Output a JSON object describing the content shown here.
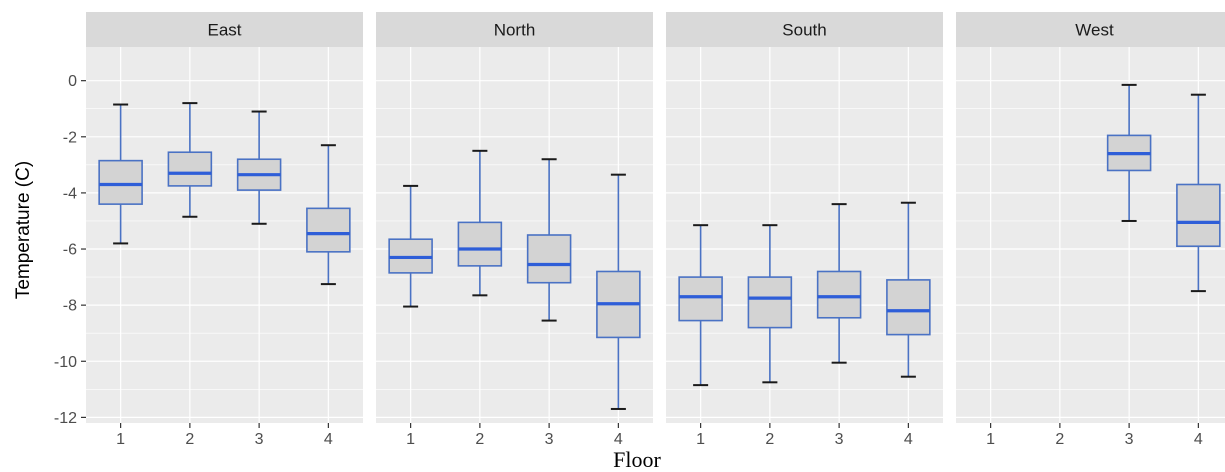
{
  "chart_data": {
    "type": "boxplot",
    "facet_by": "side",
    "xlabel": "Floor",
    "ylabel": "Temperature (C)",
    "ylim": [
      -12.2,
      1.2
    ],
    "y_ticks": [
      0,
      -2,
      -4,
      -6,
      -8,
      -10,
      -12
    ],
    "y_tick_labels": [
      "0",
      "-2",
      "-4",
      "-6",
      "-8",
      "-10",
      "-12"
    ],
    "categories": [
      "1",
      "2",
      "3",
      "4"
    ],
    "grid": true,
    "colors": {
      "box_fill": "#d3d3d3",
      "box_border": "#4a72c4",
      "median": "#2e5ed8",
      "panel_bg": "#ebebeb",
      "strip_bg": "#d9d9d9",
      "grid": "#ffffff"
    },
    "facets": [
      {
        "label": "East",
        "boxes": [
          {
            "x": "1",
            "whisker_low": -5.8,
            "q1": -4.4,
            "median": -3.7,
            "q3": -2.85,
            "whisker_high": -0.85
          },
          {
            "x": "2",
            "whisker_low": -4.85,
            "q1": -3.75,
            "median": -3.3,
            "q3": -2.55,
            "whisker_high": -0.8
          },
          {
            "x": "3",
            "whisker_low": -5.1,
            "q1": -3.9,
            "median": -3.35,
            "q3": -2.8,
            "whisker_high": -1.1
          },
          {
            "x": "4",
            "whisker_low": -7.25,
            "q1": -6.1,
            "median": -5.45,
            "q3": -4.55,
            "whisker_high": -2.3
          }
        ]
      },
      {
        "label": "North",
        "boxes": [
          {
            "x": "1",
            "whisker_low": -8.05,
            "q1": -6.85,
            "median": -6.3,
            "q3": -5.65,
            "whisker_high": -3.75
          },
          {
            "x": "2",
            "whisker_low": -7.65,
            "q1": -6.6,
            "median": -6.0,
            "q3": -5.05,
            "whisker_high": -2.5
          },
          {
            "x": "3",
            "whisker_low": -8.55,
            "q1": -7.2,
            "median": -6.55,
            "q3": -5.5,
            "whisker_high": -2.8
          },
          {
            "x": "4",
            "whisker_low": -11.7,
            "q1": -9.15,
            "median": -7.95,
            "q3": -6.8,
            "whisker_high": -3.35
          }
        ]
      },
      {
        "label": "South",
        "boxes": [
          {
            "x": "1",
            "whisker_low": -10.85,
            "q1": -8.55,
            "median": -7.7,
            "q3": -7.0,
            "whisker_high": -5.15
          },
          {
            "x": "2",
            "whisker_low": -10.75,
            "q1": -8.8,
            "median": -7.75,
            "q3": -7.0,
            "whisker_high": -5.15
          },
          {
            "x": "3",
            "whisker_low": -10.05,
            "q1": -8.45,
            "median": -7.7,
            "q3": -6.8,
            "whisker_high": -4.4
          },
          {
            "x": "4",
            "whisker_low": -10.55,
            "q1": -9.05,
            "median": -8.2,
            "q3": -7.1,
            "whisker_high": -4.35
          }
        ]
      },
      {
        "label": "West",
        "boxes": [
          {
            "x": "3",
            "whisker_low": -5.0,
            "q1": -3.2,
            "median": -2.6,
            "q3": -1.95,
            "whisker_high": -0.15
          },
          {
            "x": "4",
            "whisker_low": -7.5,
            "q1": -5.9,
            "median": -5.05,
            "q3": -3.7,
            "whisker_high": -0.5
          }
        ]
      }
    ]
  }
}
